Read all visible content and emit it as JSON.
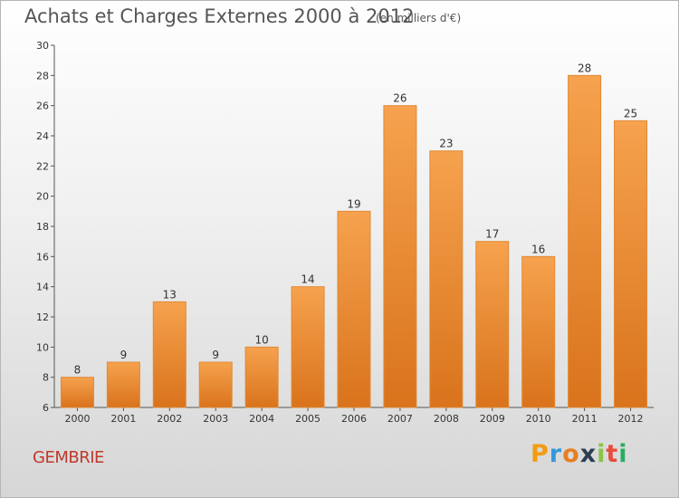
{
  "chart_data": {
    "type": "bar",
    "title": "Achats et Charges Externes 2000 à 2012",
    "subtitle": "(en milliers d'€)",
    "categories": [
      "2000",
      "2001",
      "2002",
      "2003",
      "2004",
      "2005",
      "2006",
      "2007",
      "2008",
      "2009",
      "2010",
      "2011",
      "2012"
    ],
    "values": [
      8,
      9,
      13,
      9,
      10,
      14,
      19,
      26,
      23,
      17,
      16,
      28,
      25
    ],
    "ylim": [
      6,
      30
    ],
    "yticks": [
      6,
      8,
      10,
      12,
      14,
      16,
      18,
      20,
      22,
      24,
      26,
      28,
      30
    ],
    "grid": false,
    "colors": {
      "bar_light": "#f6a24e",
      "bar_dark": "#d9731c",
      "bar_border": "#e08a35"
    }
  },
  "place_name": "GEMBRIE",
  "logo": {
    "letters": [
      "P",
      "r",
      "o",
      "x",
      "i",
      "t",
      "i"
    ],
    "colors": [
      "#f39c12",
      "#3498db",
      "#e67e22",
      "#2c3e50",
      "#8bc34a",
      "#e74c3c",
      "#27ae60"
    ]
  }
}
